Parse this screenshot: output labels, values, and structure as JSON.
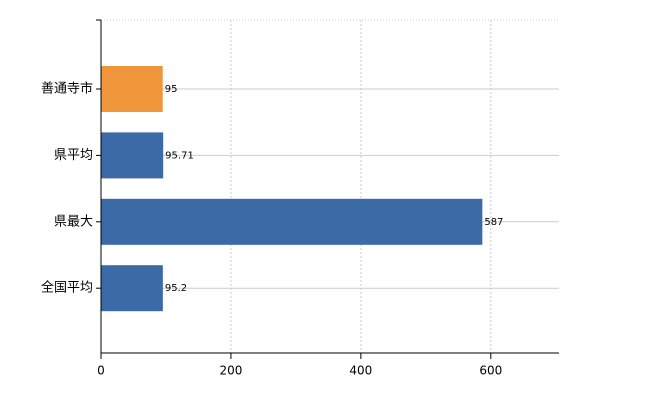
{
  "chart_data": {
    "type": "bar",
    "orientation": "horizontal",
    "categories": [
      "善通寺市",
      "県平均",
      "県最大",
      "全国平均"
    ],
    "values": [
      95,
      95.71,
      587,
      95.2
    ],
    "colors": [
      "#f0963a",
      "#3b6aa6",
      "#3b6aa6",
      "#3b6aa6"
    ],
    "xlim": [
      0,
      705
    ],
    "xticks": [
      0,
      200,
      400,
      600
    ],
    "grid": true
  }
}
